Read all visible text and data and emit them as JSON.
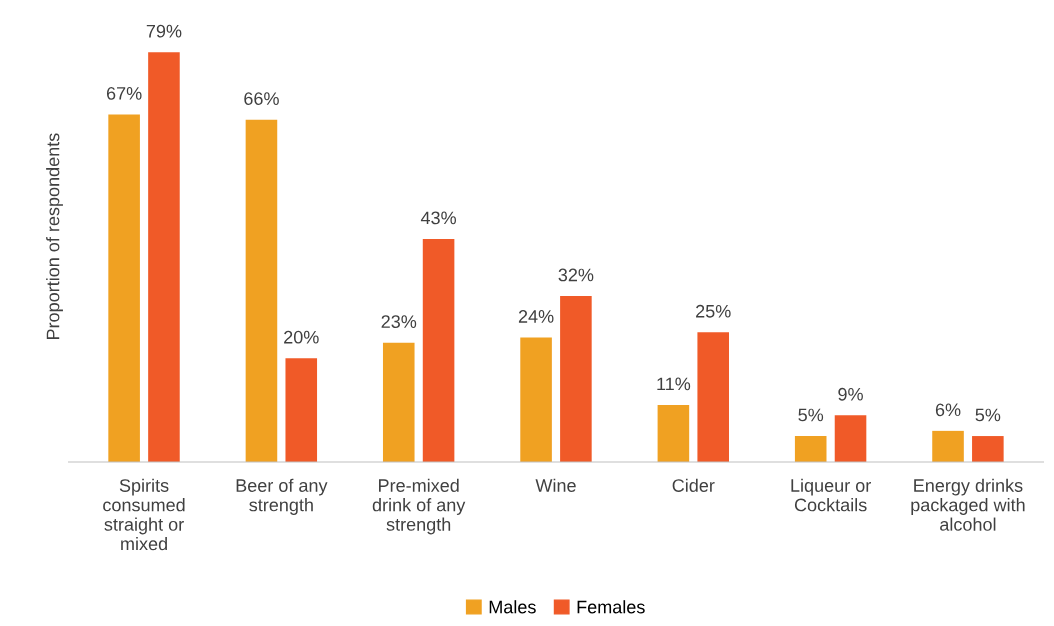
{
  "chart_data": {
    "type": "bar",
    "ylabel": "Proportion of respondents",
    "categories": [
      "Spirits\nconsumed\nstraight or\nmixed",
      "Beer of any\nstrength",
      "Pre-mixed\ndrink of any\nstrength",
      "Wine",
      "Cider",
      "Liqueur or\nCocktails",
      "Energy drinks\npackaged with\nalcohol"
    ],
    "series": [
      {
        "name": "Males",
        "color": "#f0a122",
        "values": [
          67,
          66,
          23,
          24,
          11,
          5,
          6
        ],
        "value_labels": [
          "67%",
          "66%",
          "23%",
          "24%",
          "11%",
          "5%",
          "6%"
        ]
      },
      {
        "name": "Females",
        "color": "#f05a28",
        "values": [
          79,
          20,
          43,
          32,
          25,
          9,
          5
        ],
        "value_labels": [
          "79%",
          "20%",
          "43%",
          "32%",
          "25%",
          "9%",
          "5%"
        ]
      }
    ],
    "legend": "bottom",
    "tick_labels": "x"
  }
}
